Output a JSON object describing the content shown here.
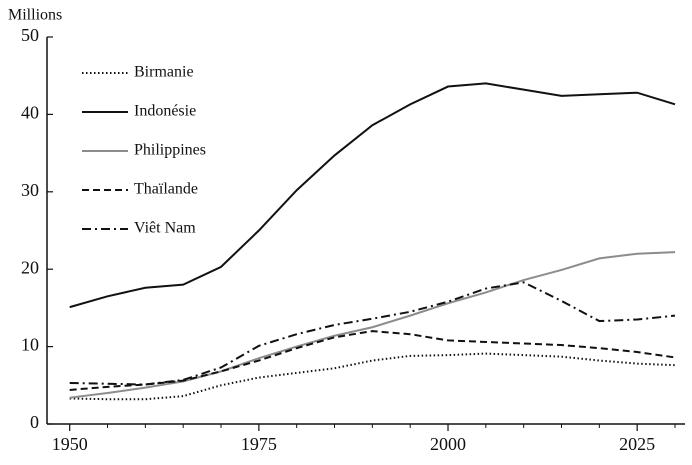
{
  "chart_data": {
    "type": "line",
    "y_label": "Millions",
    "x": [
      1950,
      1955,
      1960,
      1965,
      1970,
      1975,
      1980,
      1985,
      1990,
      1995,
      2000,
      2005,
      2010,
      2015,
      2020,
      2025,
      2030
    ],
    "series": [
      {
        "name": "Birmanie",
        "color": "#111111",
        "dash": "dotted",
        "values": [
          3.3,
          3.2,
          3.2,
          3.6,
          5.0,
          6.0,
          6.6,
          7.2,
          8.2,
          8.8,
          8.9,
          9.1,
          8.9,
          8.7,
          8.2,
          7.8,
          7.6
        ]
      },
      {
        "name": "Indonésie",
        "color": "#111111",
        "dash": "solid",
        "values": [
          15.1,
          16.5,
          17.6,
          18.0,
          20.3,
          25.0,
          30.2,
          34.7,
          38.6,
          41.3,
          43.6,
          44.0,
          43.2,
          42.4,
          42.6,
          42.8,
          41.3
        ]
      },
      {
        "name": "Philippines",
        "color": "#8c8c8c",
        "dash": "solid",
        "values": [
          3.4,
          4.0,
          4.7,
          5.5,
          6.8,
          8.5,
          10.0,
          11.4,
          12.5,
          14.0,
          15.6,
          17.0,
          18.6,
          19.9,
          21.4,
          22.0,
          22.2
        ]
      },
      {
        "name": "Thaïlande",
        "color": "#111111",
        "dash": "dashed",
        "values": [
          4.4,
          4.8,
          5.1,
          5.6,
          6.8,
          8.2,
          9.8,
          11.2,
          12.0,
          11.6,
          10.8,
          10.6,
          10.4,
          10.2,
          9.8,
          9.3,
          8.6
        ]
      },
      {
        "name": "Viêt Nam",
        "color": "#111111",
        "dash": "dashdot",
        "values": [
          5.3,
          5.2,
          5.1,
          5.7,
          7.3,
          10.1,
          11.6,
          12.8,
          13.6,
          14.5,
          15.8,
          17.5,
          18.3,
          15.9,
          13.3,
          13.5,
          14.0
        ]
      }
    ],
    "xlim": [
      1947,
      2030
    ],
    "xticks": [
      1950,
      1975,
      2000,
      2025
    ],
    "xticks_minor": [
      1955,
      1960,
      1965,
      1970,
      1980,
      1985,
      1990,
      1995,
      2005,
      2010,
      2015,
      2020,
      2030
    ],
    "ylim": [
      0,
      50
    ],
    "yticks": [
      0,
      10,
      20,
      30,
      40,
      50
    ],
    "grid": false,
    "legend": "upper left"
  }
}
